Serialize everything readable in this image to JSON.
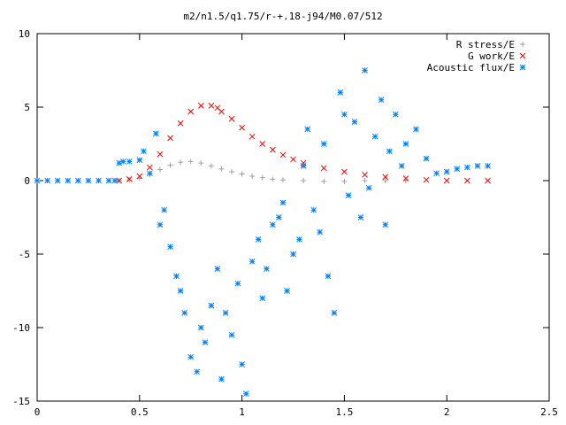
{
  "chart_data": {
    "type": "scatter",
    "title": "m2/n1.5/q1.75/r-+.18-j94/M0.07/512",
    "xlabel": "",
    "ylabel": "",
    "xlim": [
      0,
      2.5
    ],
    "ylim": [
      -15,
      10
    ],
    "x_ticks": [
      0,
      0.5,
      1,
      1.5,
      2,
      2.5
    ],
    "x_tick_labels": [
      "0",
      "0.5",
      "1",
      "1.5",
      "2",
      "2.5"
    ],
    "y_ticks": [
      -15,
      -10,
      -5,
      0,
      5,
      10
    ],
    "y_tick_labels": [
      "-15",
      "-10",
      "-5",
      "0",
      "5",
      "10"
    ],
    "grid": false,
    "legend_position": "top-right",
    "series": [
      {
        "name": "R stress/E",
        "marker": "plus",
        "color": "#a0a0a0",
        "x": [
          0.4,
          0.45,
          0.5,
          0.55,
          0.6,
          0.65,
          0.7,
          0.75,
          0.8,
          0.85,
          0.9,
          0.95,
          1.0,
          1.05,
          1.1,
          1.15,
          1.2,
          1.3,
          1.4,
          1.5,
          1.6,
          1.7,
          1.8
        ],
        "y": [
          0.0,
          0.05,
          0.15,
          0.4,
          0.75,
          1.05,
          1.25,
          1.3,
          1.2,
          1.0,
          0.8,
          0.6,
          0.45,
          0.3,
          0.2,
          0.1,
          0.05,
          0.0,
          -0.05,
          -0.05,
          0.0,
          0.0,
          0.0
        ]
      },
      {
        "name": "G work/E",
        "marker": "x",
        "color": "#ff0000",
        "x": [
          0.4,
          0.45,
          0.5,
          0.55,
          0.6,
          0.65,
          0.7,
          0.75,
          0.8,
          0.85,
          0.88,
          0.9,
          0.95,
          1.0,
          1.05,
          1.1,
          1.15,
          1.2,
          1.25,
          1.3,
          1.4,
          1.5,
          1.6,
          1.7,
          1.8,
          1.9,
          2.0,
          2.1,
          2.2
        ],
        "y": [
          0.0,
          0.1,
          0.3,
          0.9,
          1.8,
          2.9,
          3.9,
          4.7,
          5.1,
          5.1,
          4.95,
          4.7,
          4.2,
          3.6,
          3.0,
          2.5,
          2.1,
          1.75,
          1.45,
          1.2,
          0.85,
          0.6,
          0.4,
          0.25,
          0.15,
          0.05,
          0.0,
          0.0,
          0.0
        ]
      },
      {
        "name": "Acoustic flux/E",
        "marker": "star",
        "color": "#0080ff",
        "x": [
          0.0,
          0.05,
          0.1,
          0.15,
          0.2,
          0.25,
          0.3,
          0.35,
          0.38,
          0.4,
          0.42,
          0.45,
          0.5,
          0.52,
          0.55,
          0.58,
          0.6,
          0.62,
          0.65,
          0.68,
          0.7,
          0.72,
          0.75,
          0.78,
          0.8,
          0.82,
          0.85,
          0.88,
          0.9,
          0.92,
          0.95,
          0.98,
          1.0,
          1.02,
          1.05,
          1.08,
          1.1,
          1.12,
          1.15,
          1.18,
          1.2,
          1.22,
          1.25,
          1.28,
          1.3,
          1.32,
          1.35,
          1.38,
          1.4,
          1.42,
          1.45,
          1.48,
          1.5,
          1.52,
          1.55,
          1.58,
          1.6,
          1.62,
          1.65,
          1.68,
          1.7,
          1.72,
          1.75,
          1.78,
          1.8,
          1.85,
          1.9,
          1.95,
          2.0,
          2.05,
          2.1,
          2.15,
          2.2
        ],
        "y": [
          0.0,
          0.0,
          0.0,
          0.0,
          0.0,
          0.0,
          0.0,
          0.0,
          0.0,
          1.2,
          1.3,
          1.3,
          1.4,
          2.0,
          0.5,
          3.2,
          -3.0,
          -2.0,
          -4.5,
          -6.5,
          -7.5,
          -9.0,
          -12.0,
          -13.0,
          -10.0,
          -11.0,
          -8.5,
          -6.0,
          -13.5,
          -9.0,
          -10.5,
          -7.0,
          -12.5,
          -14.5,
          -5.5,
          -4.0,
          -8.0,
          -6.0,
          -3.0,
          -2.5,
          -1.5,
          -7.5,
          -5.0,
          -4.0,
          1.0,
          3.5,
          -2.0,
          -3.5,
          2.5,
          -6.5,
          -9.0,
          6.0,
          4.5,
          -1.0,
          4.0,
          -2.5,
          7.5,
          -0.5,
          3.0,
          5.5,
          -3.0,
          2.0,
          4.5,
          1.0,
          2.5,
          3.5,
          1.5,
          0.5,
          0.6,
          0.8,
          0.9,
          1.0,
          1.0
        ]
      }
    ]
  }
}
